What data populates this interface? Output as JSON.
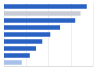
{
  "chart_data": {
    "type": "bar",
    "orientation": "horizontal",
    "categories": [
      null,
      null,
      null,
      null,
      null,
      null,
      null,
      null,
      null
    ],
    "values": [
      93,
      86,
      80,
      63,
      52,
      43,
      36,
      29,
      20
    ],
    "colors": [
      "#2a62c4",
      "#c9ccd6",
      "#2a62c4",
      "#2a62c4",
      "#2a62c4",
      "#2a62c4",
      "#2a62c4",
      "#2a62c4",
      "#a9c1ea"
    ],
    "xlim": [
      0,
      100
    ],
    "xticks": [
      0,
      25,
      50,
      75,
      100
    ],
    "grid": true,
    "tick_labels": false
  }
}
